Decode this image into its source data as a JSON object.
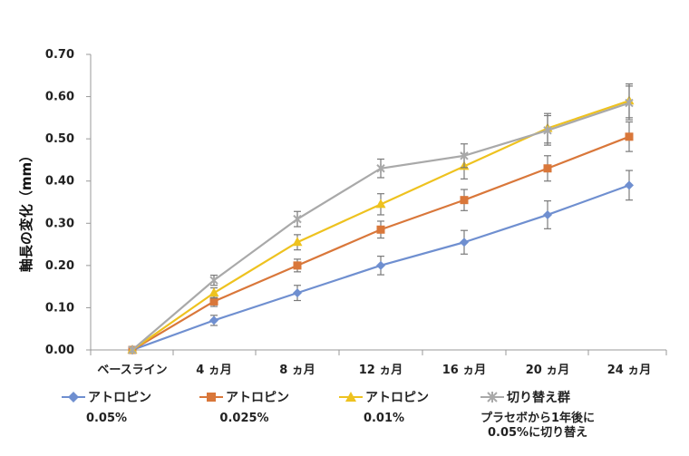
{
  "chart_data": {
    "type": "line",
    "title": "",
    "xlabel": "",
    "ylabel": "軸長の変化（mm）",
    "categories": [
      "ベースライン",
      "4 ヵ月",
      "8 ヵ月",
      "12 ヵ月",
      "16 ヵ月",
      "20 ヵ月",
      "24 ヵ月"
    ],
    "ylim": [
      0,
      0.7
    ],
    "yticks": [
      "0.00",
      "0.10",
      "0.20",
      "0.30",
      "0.40",
      "0.50",
      "0.60",
      "0.70"
    ],
    "grid": false,
    "legend_position": "bottom",
    "series": [
      {
        "name": "アトロピン",
        "sub": "0.05%",
        "color": "#6F8FD0",
        "marker": "diamond",
        "values": [
          0.0,
          0.07,
          0.135,
          0.2,
          0.255,
          0.32,
          0.39
        ],
        "errors": [
          0.0,
          0.012,
          0.018,
          0.022,
          0.028,
          0.033,
          0.035
        ]
      },
      {
        "name": "アトロピン",
        "sub": "0.025%",
        "color": "#D9773A",
        "marker": "square",
        "values": [
          0.0,
          0.115,
          0.2,
          0.285,
          0.355,
          0.43,
          0.505
        ],
        "errors": [
          0.0,
          0.012,
          0.015,
          0.02,
          0.025,
          0.03,
          0.035
        ]
      },
      {
        "name": "アトロピン",
        "sub": "0.01%",
        "color": "#EEC21F",
        "marker": "triangle",
        "values": [
          0.0,
          0.135,
          0.255,
          0.345,
          0.435,
          0.525,
          0.59
        ],
        "errors": [
          0.0,
          0.012,
          0.018,
          0.025,
          0.03,
          0.035,
          0.04
        ]
      },
      {
        "name": "切り替え群",
        "sub": "プラセボから1年後に\n0.05%に切り替え",
        "color": "#A9A9A9",
        "marker": "x",
        "values": [
          0.0,
          0.165,
          0.31,
          0.43,
          0.46,
          0.52,
          0.585
        ],
        "errors": [
          0.0,
          0.012,
          0.018,
          0.022,
          0.028,
          0.035,
          0.04
        ]
      }
    ]
  }
}
